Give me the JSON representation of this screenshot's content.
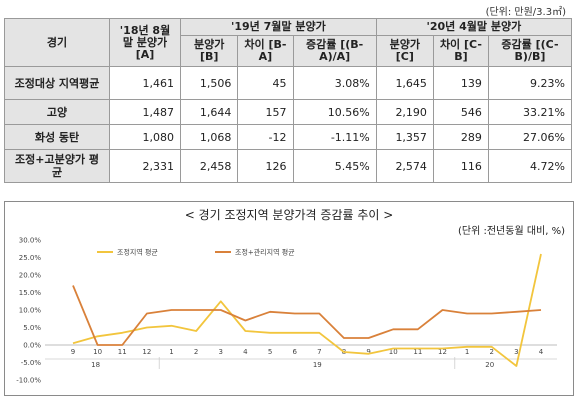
{
  "table": {
    "unit": "(단위: 만원/3.3㎡)",
    "header": {
      "region": "경기",
      "base": "'18년 8월말 분양가 [A]",
      "group1": "'19년 7월말 분양가",
      "group2": "'20년 4월말 분양가",
      "cols": [
        "분양가 [B]",
        "차이 [B-A]",
        "증감률 [(B-A)/A]",
        "분양가 [C]",
        "차이 [C-B]",
        "증감률 [(C-B)/B]"
      ]
    },
    "rows": [
      {
        "label": "조정대상 지역평균",
        "a": "1,461",
        "b": "1,506",
        "ba": "45",
        "bar": "3.08%",
        "c": "1,645",
        "cb": "139",
        "cbr": "9.23%"
      },
      {
        "label": "고양",
        "a": "1,487",
        "b": "1,644",
        "ba": "157",
        "bar": "10.56%",
        "c": "2,190",
        "cb": "546",
        "cbr": "33.21%"
      },
      {
        "label": "화성 동탄",
        "a": "1,080",
        "b": "1,068",
        "ba": "-12",
        "bar": "-1.11%",
        "c": "1,357",
        "cb": "289",
        "cbr": "27.06%"
      },
      {
        "label": "조정+고분양가 평균",
        "a": "2,331",
        "b": "2,458",
        "ba": "126",
        "bar": "5.45%",
        "c": "2,574",
        "cb": "116",
        "cbr": "4.72%"
      }
    ]
  },
  "chart_data": {
    "type": "line",
    "title": "< 경기 조정지역 분양가격 증감률 추이 >",
    "unit_note": "(단위 :전년동월 대비, %)",
    "x": [
      "9",
      "10",
      "11",
      "12",
      "1",
      "2",
      "3",
      "4",
      "5",
      "6",
      "7",
      "8",
      "9",
      "10",
      "11",
      "12",
      "1",
      "2",
      "3",
      "4"
    ],
    "year_labels": [
      {
        "after_index": 1,
        "text": "18"
      },
      {
        "after_index": 10,
        "text": "19"
      },
      {
        "after_index": 17,
        "text": "20"
      }
    ],
    "ylim": [
      -10,
      30
    ],
    "yticks": [
      "30.0%",
      "25.0%",
      "20.0%",
      "15.0%",
      "10.0%",
      "5.0%",
      "0.0%",
      "-5.0%",
      "-10.0%"
    ],
    "ytick_values": [
      30,
      25,
      20,
      15,
      10,
      5,
      0,
      -5,
      -10
    ],
    "series": [
      {
        "name": "조정지역 평균",
        "color": "#f2c53d",
        "values": [
          0.5,
          2.5,
          3.5,
          5,
          5.5,
          4,
          12.5,
          4,
          3.5,
          3.5,
          3.5,
          -2,
          -2.5,
          -1,
          -1,
          -1,
          -0.5,
          -0.5,
          -6,
          26
        ]
      },
      {
        "name": "조정+관리지역 평균",
        "color": "#d9813a",
        "values": [
          17,
          0,
          0,
          9,
          10,
          10,
          10,
          7,
          9.5,
          9,
          9,
          2,
          2,
          4.5,
          4.5,
          10,
          9,
          9,
          9.5,
          10
        ]
      }
    ],
    "grid": false,
    "legend": "top-left"
  }
}
